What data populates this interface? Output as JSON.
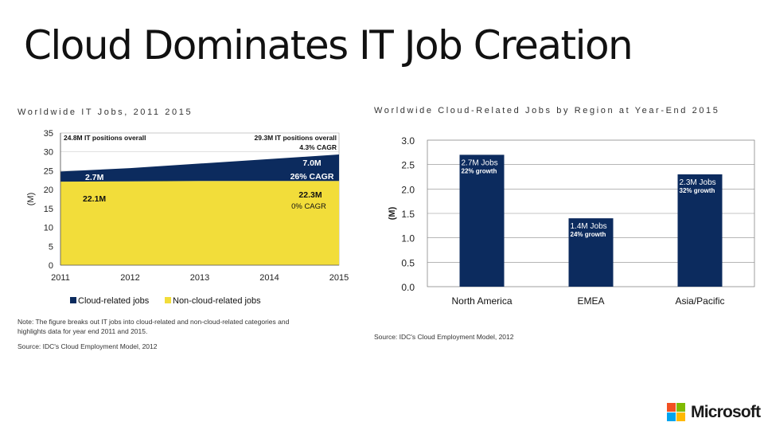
{
  "slide": {
    "title": "Cloud Dominates IT Job Creation"
  },
  "chart_data": [
    {
      "type": "area",
      "title": "Worldwide IT Jobs, 2011 2015",
      "ylabel": "(M)",
      "x": [
        "2011",
        "2012",
        "2013",
        "2014",
        "2015"
      ],
      "y_ticks": [
        "0",
        "5",
        "10",
        "15",
        "20",
        "25",
        "30",
        "35"
      ],
      "ylim": [
        0,
        35
      ],
      "series": [
        {
          "name": "Non-cloud-related jobs",
          "color": "#f2dd3a",
          "values": [
            22.1,
            22.2,
            22.3,
            22.3,
            22.3
          ]
        },
        {
          "name": "Cloud-related jobs",
          "color": "#0c2b5e",
          "values": [
            2.7,
            3.5,
            4.6,
            5.8,
            7.0
          ]
        }
      ],
      "legend": [
        "Cloud-related jobs",
        "Non-cloud-related jobs"
      ],
      "annotations": {
        "total_2011": "24.8M IT positions overall",
        "total_2015": "29.3M IT positions overall",
        "total_cagr": "4.3% CAGR",
        "cloud_2011": "2.7M",
        "cloud_2015": "7.0M",
        "cloud_cagr": "26% CAGR",
        "noncloud_2011": "22.1M",
        "noncloud_2015": "22.3M",
        "noncloud_cagr": "0% CAGR"
      },
      "note_line1": "Note: The figure breaks out IT jobs into cloud-related and non-cloud-related categories and",
      "note_line2": "highlights data for year end 2011 and 2015.",
      "source": "Source: IDC's Cloud Employment Model, 2012"
    },
    {
      "type": "bar",
      "title": "Worldwide Cloud-Related Jobs by Region at Year-End 2015",
      "ylabel": "(M)",
      "categories": [
        "North America",
        "EMEA",
        "Asia/Pacific"
      ],
      "values": [
        2.7,
        1.4,
        2.3
      ],
      "bar_labels": [
        "2.7M Jobs",
        "1.4M Jobs",
        "2.3M Jobs"
      ],
      "growth_labels": [
        "22% growth",
        "24% growth",
        "32% growth"
      ],
      "y_ticks": [
        "0.0",
        "0.5",
        "1.0",
        "1.5",
        "2.0",
        "2.5",
        "3.0"
      ],
      "ylim": [
        0,
        3.0
      ],
      "color": "#0c2b5e",
      "source": "Source: IDC's Cloud Employment Model, 2012"
    }
  ],
  "logo": {
    "text": "Microsoft",
    "colors": [
      "#f25022",
      "#7fba00",
      "#00a4ef",
      "#ffb900"
    ]
  }
}
